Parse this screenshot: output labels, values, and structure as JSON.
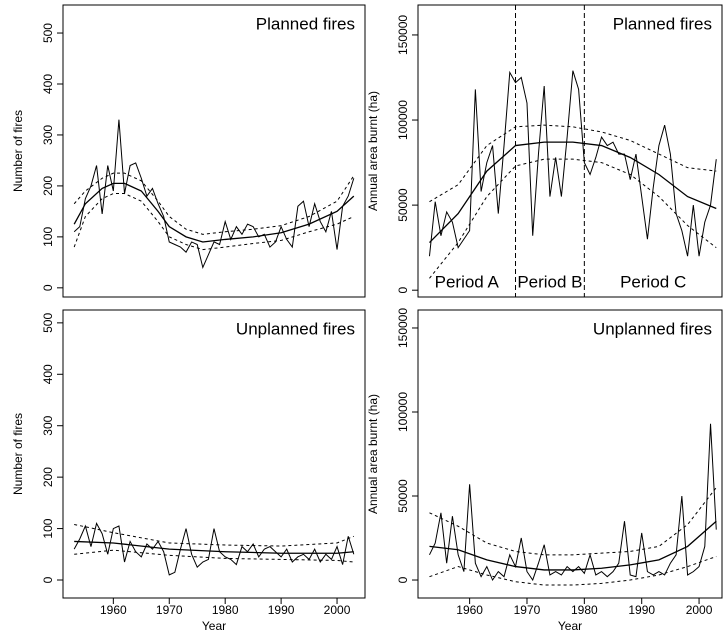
{
  "chart_data": [
    {
      "type": "line",
      "title": "Planned fires",
      "y_label": "Number of fires",
      "xlim": [
        1951,
        2005
      ],
      "ylim": [
        -18,
        555
      ],
      "yticks": [
        0,
        100,
        200,
        300,
        400,
        500
      ],
      "x": [
        1953,
        1954,
        1955,
        1956,
        1957,
        1958,
        1959,
        1960,
        1961,
        1962,
        1963,
        1964,
        1965,
        1966,
        1967,
        1968,
        1969,
        1970,
        1971,
        1972,
        1973,
        1974,
        1975,
        1976,
        1977,
        1978,
        1979,
        1980,
        1981,
        1982,
        1983,
        1984,
        1985,
        1986,
        1987,
        1988,
        1989,
        1990,
        1991,
        1992,
        1993,
        1994,
        1995,
        1996,
        1997,
        1998,
        1999,
        2000,
        2001,
        2002,
        2003
      ],
      "series": [
        {
          "dash": "solid",
          "width": 1,
          "values": [
            110,
            120,
            175,
            200,
            240,
            145,
            240,
            190,
            330,
            185,
            240,
            245,
            215,
            180,
            195,
            165,
            140,
            90,
            85,
            80,
            70,
            90,
            85,
            40,
            65,
            90,
            85,
            130,
            95,
            120,
            105,
            125,
            120,
            100,
            105,
            80,
            90,
            120,
            95,
            80,
            160,
            170,
            120,
            165,
            130,
            110,
            150,
            75,
            160,
            180,
            215
          ]
        },
        {
          "dash": "solid",
          "width": 1.3,
          "x": [
            1953,
            1955,
            1958,
            1960,
            1962,
            1965,
            1968,
            1970,
            1973,
            1976,
            1980,
            1985,
            1990,
            1995,
            2000,
            2003
          ],
          "values": [
            125,
            165,
            195,
            205,
            205,
            190,
            150,
            120,
            100,
            90,
            95,
            100,
            108,
            125,
            150,
            180
          ]
        },
        {
          "dash": "dotted",
          "width": 1,
          "x": [
            1953,
            1955,
            1958,
            1960,
            1962,
            1965,
            1968,
            1970,
            1973,
            1976,
            1980,
            1985,
            1990,
            1995,
            2000,
            2003
          ],
          "values": [
            165,
            190,
            215,
            225,
            225,
            210,
            170,
            140,
            115,
            105,
            110,
            115,
            122,
            140,
            170,
            220
          ]
        },
        {
          "dash": "dotted",
          "width": 1,
          "x": [
            1953,
            1955,
            1958,
            1960,
            1962,
            1965,
            1968,
            1970,
            1973,
            1976,
            1980,
            1985,
            1990,
            1995,
            2000,
            2003
          ],
          "values": [
            80,
            140,
            175,
            185,
            185,
            170,
            130,
            100,
            85,
            75,
            80,
            87,
            93,
            110,
            125,
            140
          ]
        }
      ]
    },
    {
      "type": "line",
      "title": "Planned fires",
      "y_label": "Annual area burnt (ha)",
      "xlim": [
        1951,
        2004
      ],
      "ylim": [
        -4000,
        167600
      ],
      "yticks": [
        0,
        50000,
        100000,
        150000
      ],
      "period_breaks": [
        1968,
        1980
      ],
      "period_labels": [
        "Period A",
        "Period B",
        "Period C"
      ],
      "x": [
        1953,
        1954,
        1955,
        1956,
        1957,
        1958,
        1959,
        1960,
        1961,
        1962,
        1963,
        1964,
        1965,
        1966,
        1967,
        1968,
        1969,
        1970,
        1971,
        1972,
        1973,
        1974,
        1975,
        1976,
        1977,
        1978,
        1979,
        1980,
        1981,
        1982,
        1983,
        1984,
        1985,
        1986,
        1987,
        1988,
        1989,
        1990,
        1991,
        1992,
        1993,
        1994,
        1995,
        1996,
        1997,
        1998,
        1999,
        2000,
        2001,
        2002,
        2003
      ],
      "series": [
        {
          "dash": "solid",
          "width": 1,
          "values": [
            20000,
            52000,
            32000,
            46000,
            40000,
            25000,
            30000,
            35000,
            118000,
            58000,
            75000,
            85000,
            45000,
            85000,
            128000,
            122000,
            125000,
            110000,
            32000,
            80000,
            120000,
            55000,
            78000,
            55000,
            90000,
            129000,
            118000,
            75000,
            68000,
            78000,
            90000,
            85000,
            87000,
            80000,
            80000,
            65000,
            80000,
            55000,
            30000,
            60000,
            85000,
            97000,
            80000,
            45000,
            35000,
            20000,
            50000,
            20000,
            40000,
            50000,
            77000
          ]
        },
        {
          "dash": "solid",
          "width": 1.3,
          "x": [
            1953,
            1958,
            1963,
            1968,
            1973,
            1978,
            1983,
            1988,
            1993,
            1998,
            2003
          ],
          "values": [
            28000,
            45000,
            70000,
            85000,
            87000,
            87000,
            85000,
            78000,
            68000,
            55000,
            48000
          ]
        },
        {
          "dash": "dotted",
          "width": 1,
          "x": [
            1953,
            1958,
            1963,
            1968,
            1973,
            1978,
            1983,
            1988,
            1993,
            1998,
            2003
          ],
          "values": [
            52000,
            62000,
            85000,
            96000,
            97000,
            96000,
            93000,
            88000,
            80000,
            72000,
            70000
          ]
        },
        {
          "dash": "dotted",
          "width": 1,
          "x": [
            1953,
            1958,
            1963,
            1968,
            1973,
            1978,
            1983,
            1988,
            1993,
            1998,
            2003
          ],
          "values": [
            7000,
            28000,
            55000,
            73000,
            77000,
            77000,
            75000,
            68000,
            55000,
            38000,
            25000
          ]
        }
      ]
    },
    {
      "type": "line",
      "title": "Unplanned fires",
      "y_label": "Number of fires",
      "x_label": "Year",
      "xlim": [
        1951,
        2005
      ],
      "ylim": [
        -35,
        525
      ],
      "yticks": [
        0,
        100,
        200,
        300,
        400,
        500
      ],
      "xticks": [
        1960,
        1970,
        1980,
        1990,
        2000
      ],
      "x": [
        1953,
        1954,
        1955,
        1956,
        1957,
        1958,
        1959,
        1960,
        1961,
        1962,
        1963,
        1964,
        1965,
        1966,
        1967,
        1968,
        1969,
        1970,
        1971,
        1972,
        1973,
        1974,
        1975,
        1976,
        1977,
        1978,
        1979,
        1980,
        1981,
        1982,
        1983,
        1984,
        1985,
        1986,
        1987,
        1988,
        1989,
        1990,
        1991,
        1992,
        1993,
        1994,
        1995,
        1996,
        1997,
        1998,
        1999,
        2000,
        2001,
        2002,
        2003
      ],
      "series": [
        {
          "dash": "solid",
          "width": 1,
          "values": [
            60,
            80,
            105,
            65,
            110,
            90,
            50,
            100,
            105,
            35,
            75,
            55,
            45,
            70,
            60,
            75,
            55,
            10,
            15,
            60,
            100,
            50,
            25,
            35,
            40,
            100,
            55,
            45,
            40,
            30,
            65,
            55,
            70,
            45,
            60,
            65,
            55,
            45,
            60,
            35,
            45,
            50,
            40,
            60,
            35,
            50,
            40,
            65,
            30,
            85,
            50
          ]
        },
        {
          "dash": "solid",
          "width": 1.3,
          "x": [
            1953,
            1960,
            1970,
            1980,
            1990,
            2000,
            2003
          ],
          "values": [
            75,
            72,
            60,
            55,
            52,
            52,
            55
          ]
        },
        {
          "dash": "dotted",
          "width": 1,
          "x": [
            1953,
            1960,
            1970,
            1980,
            1990,
            2000,
            2003
          ],
          "values": [
            108,
            92,
            72,
            68,
            66,
            72,
            85
          ]
        },
        {
          "dash": "dotted",
          "width": 1,
          "x": [
            1953,
            1960,
            1970,
            1980,
            1990,
            2000,
            2003
          ],
          "values": [
            50,
            58,
            48,
            42,
            40,
            38,
            35
          ]
        }
      ]
    },
    {
      "type": "line",
      "title": "Unplanned fires",
      "y_label": "Annual area burnt (ha)",
      "x_label": "Year",
      "xlim": [
        1951,
        2004
      ],
      "ylim": [
        -10700,
        160700
      ],
      "yticks": [
        0,
        50000,
        100000,
        150000
      ],
      "xticks": [
        1960,
        1970,
        1980,
        1990,
        2000
      ],
      "x": [
        1953,
        1954,
        1955,
        1956,
        1957,
        1958,
        1959,
        1960,
        1961,
        1962,
        1963,
        1964,
        1965,
        1966,
        1967,
        1968,
        1969,
        1970,
        1971,
        1972,
        1973,
        1974,
        1975,
        1976,
        1977,
        1978,
        1979,
        1980,
        1981,
        1982,
        1983,
        1984,
        1985,
        1986,
        1987,
        1988,
        1989,
        1990,
        1991,
        1992,
        1993,
        1994,
        1995,
        1996,
        1997,
        1998,
        1999,
        2000,
        2001,
        2002,
        2003
      ],
      "series": [
        {
          "dash": "solid",
          "width": 1,
          "values": [
            15000,
            22000,
            40000,
            10000,
            38000,
            15000,
            5000,
            57000,
            10000,
            2000,
            8000,
            0,
            5000,
            2000,
            15000,
            8000,
            25000,
            5000,
            0,
            10000,
            21000,
            3000,
            5000,
            3000,
            8000,
            5000,
            8000,
            4000,
            15000,
            3000,
            5000,
            2000,
            5000,
            10000,
            35000,
            3000,
            2000,
            28000,
            5000,
            3000,
            5000,
            3000,
            10000,
            15000,
            50000,
            3000,
            5000,
            8000,
            20000,
            93000,
            30000
          ]
        },
        {
          "dash": "solid",
          "width": 1.3,
          "x": [
            1953,
            1958,
            1963,
            1968,
            1973,
            1978,
            1983,
            1988,
            1993,
            1998,
            2003
          ],
          "values": [
            20000,
            18000,
            12000,
            8000,
            6000,
            6000,
            7000,
            9000,
            12000,
            20000,
            35000
          ]
        },
        {
          "dash": "dotted",
          "width": 1,
          "x": [
            1953,
            1958,
            1963,
            1968,
            1973,
            1978,
            1983,
            1988,
            1993,
            1998,
            2003
          ],
          "values": [
            40000,
            32000,
            22000,
            17000,
            15000,
            15000,
            16000,
            17000,
            20000,
            33000,
            55000
          ]
        },
        {
          "dash": "dotted",
          "width": 1,
          "x": [
            1953,
            1958,
            1963,
            1968,
            1973,
            1978,
            1983,
            1988,
            1993,
            1998,
            2003
          ],
          "values": [
            2000,
            8000,
            3000,
            -1000,
            -3000,
            -3000,
            -2000,
            0,
            3000,
            8000,
            14000
          ]
        }
      ]
    }
  ]
}
